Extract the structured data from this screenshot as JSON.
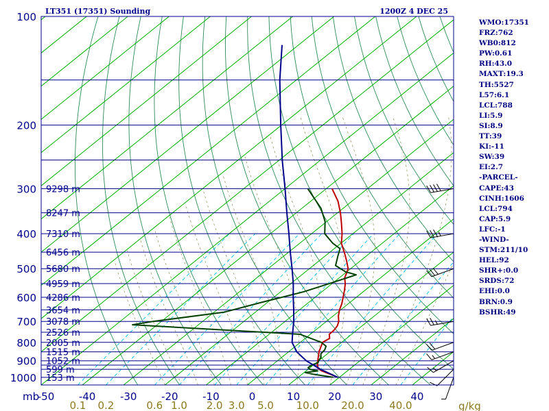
{
  "chart_data": {
    "type": "line",
    "title": "LT351 (17351) Sounding",
    "valid_time": "1200Z  4 DEC 25",
    "pressure_axis": {
      "unit": "mb",
      "ticks": [
        100,
        200,
        300,
        400,
        500,
        600,
        700,
        800,
        900,
        1000
      ],
      "range": [
        100,
        1050
      ]
    },
    "temperature_axis": {
      "unit": "C",
      "ticks": [
        -50,
        -40,
        -30,
        -20,
        -10,
        0,
        10,
        20,
        30,
        40
      ],
      "range": [
        -50,
        50
      ]
    },
    "mixing_ratio_axis": {
      "unit": "g/kg",
      "ticks": [
        "0.1",
        "0.2",
        "0.6",
        "1.0",
        "2.0",
        "3.0",
        "5.0",
        "10.0",
        "20.0",
        "40.0"
      ]
    },
    "isobars": [
      100,
      150,
      200,
      250,
      300,
      350,
      400,
      450,
      500,
      550,
      600,
      650,
      700,
      750,
      800,
      850,
      900,
      925,
      950,
      1000
    ],
    "height_labels": [
      {
        "p": 300,
        "label": "9298 m"
      },
      {
        "p": 350,
        "label": "8247 m"
      },
      {
        "p": 400,
        "label": "7310 m"
      },
      {
        "p": 450,
        "label": "6456 m"
      },
      {
        "p": 500,
        "label": "5680 m"
      },
      {
        "p": 550,
        "label": "4959 m"
      },
      {
        "p": 600,
        "label": "4286 m"
      },
      {
        "p": 650,
        "label": "3654 m"
      },
      {
        "p": 700,
        "label": "3078 m"
      },
      {
        "p": 750,
        "label": "2526 m"
      },
      {
        "p": 800,
        "label": "2005 m"
      },
      {
        "p": 850,
        "label": "1515 m"
      },
      {
        "p": 900,
        "label": "1052 m"
      },
      {
        "p": 950,
        "label": "599 m"
      },
      {
        "p": 1000,
        "label": "153 m"
      }
    ],
    "series": [
      {
        "name": "Temperature",
        "color": "#c00000",
        "points": [
          {
            "p": 1000,
            "t": 19.6
          },
          {
            "p": 990,
            "t": 18.2
          },
          {
            "p": 975,
            "t": 16.0
          },
          {
            "p": 960,
            "t": 13.8
          },
          {
            "p": 945,
            "t": 12.2
          },
          {
            "p": 925,
            "t": 11.0
          },
          {
            "p": 900,
            "t": 9.8
          },
          {
            "p": 875,
            "t": 8.6
          },
          {
            "p": 850,
            "t": 7.4
          },
          {
            "p": 825,
            "t": 6.4
          },
          {
            "p": 800,
            "t": 5.4
          },
          {
            "p": 780,
            "t": 5.9
          },
          {
            "p": 760,
            "t": 4.6
          },
          {
            "p": 740,
            "t": 4.5
          },
          {
            "p": 720,
            "t": 4.0
          },
          {
            "p": 700,
            "t": 3.0
          },
          {
            "p": 675,
            "t": 1.2
          },
          {
            "p": 650,
            "t": -0.3
          },
          {
            "p": 625,
            "t": -1.6
          },
          {
            "p": 600,
            "t": -3.2
          },
          {
            "p": 575,
            "t": -4.9
          },
          {
            "p": 550,
            "t": -6.8
          },
          {
            "p": 530,
            "t": -8.7
          },
          {
            "p": 515,
            "t": -9.6
          },
          {
            "p": 500,
            "t": -10.6
          },
          {
            "p": 475,
            "t": -13.4
          },
          {
            "p": 450,
            "t": -16.5
          },
          {
            "p": 425,
            "t": -19.9
          },
          {
            "p": 400,
            "t": -22.6
          },
          {
            "p": 375,
            "t": -25.8
          },
          {
            "p": 350,
            "t": -29.3
          },
          {
            "p": 325,
            "t": -33.4
          },
          {
            "p": 300,
            "t": -38.6
          }
        ]
      },
      {
        "name": "Dewpoint",
        "color": "#004000",
        "points": [
          {
            "p": 1000,
            "t": 18.5
          },
          {
            "p": 980,
            "t": 12.6
          },
          {
            "p": 970,
            "t": 10.3
          },
          {
            "p": 960,
            "t": 12.8
          },
          {
            "p": 950,
            "t": 10.4
          },
          {
            "p": 940,
            "t": 9.5
          },
          {
            "p": 925,
            "t": 9.6
          },
          {
            "p": 910,
            "t": 10.4
          },
          {
            "p": 900,
            "t": 10.0
          },
          {
            "p": 880,
            "t": 9.5
          },
          {
            "p": 860,
            "t": 8.4
          },
          {
            "p": 840,
            "t": 8.2
          },
          {
            "p": 820,
            "t": 7.4
          },
          {
            "p": 800,
            "t": 5.1
          },
          {
            "p": 760,
            "t": -2.5
          },
          {
            "p": 715,
            "t": -46.0
          },
          {
            "p": 700,
            "t": -42.0
          },
          {
            "p": 660,
            "t": -27.6
          },
          {
            "p": 620,
            "t": -21.5
          },
          {
            "p": 580,
            "t": -14.5
          },
          {
            "p": 550,
            "t": -10.7
          },
          {
            "p": 520,
            "t": -6.8
          },
          {
            "p": 510,
            "t": -10.3
          },
          {
            "p": 490,
            "t": -14.6
          },
          {
            "p": 460,
            "t": -17.0
          },
          {
            "p": 440,
            "t": -18.6
          },
          {
            "p": 425,
            "t": -22.0
          },
          {
            "p": 400,
            "t": -26.8
          },
          {
            "p": 370,
            "t": -30.4
          },
          {
            "p": 340,
            "t": -35.4
          },
          {
            "p": 300,
            "t": -44.5
          }
        ]
      },
      {
        "name": "Parcel path",
        "color": "#00008c",
        "points": [
          {
            "p": 1000,
            "t": 19.6
          },
          {
            "p": 950,
            "t": 13.0
          },
          {
            "p": 900,
            "t": 7.0
          },
          {
            "p": 850,
            "t": 2.0
          },
          {
            "p": 800,
            "t": -2.0
          },
          {
            "p": 750,
            "t": -4.9
          },
          {
            "p": 700,
            "t": -7.9
          },
          {
            "p": 650,
            "t": -11.4
          },
          {
            "p": 600,
            "t": -15.3
          },
          {
            "p": 550,
            "t": -19.4
          },
          {
            "p": 500,
            "t": -24.2
          },
          {
            "p": 450,
            "t": -29.6
          },
          {
            "p": 400,
            "t": -35.5
          },
          {
            "p": 350,
            "t": -42.3
          },
          {
            "p": 300,
            "t": -50.0
          },
          {
            "p": 250,
            "t": -59.3
          },
          {
            "p": 200,
            "t": -70.2
          },
          {
            "p": 150,
            "t": -84.0
          },
          {
            "p": 120,
            "t": -94.0
          }
        ]
      }
    ],
    "wind_barbs": [
      {
        "p": 1000,
        "dir": 200,
        "speed_kt": 5
      },
      {
        "p": 950,
        "dir": 225,
        "speed_kt": 10
      },
      {
        "p": 900,
        "dir": 240,
        "speed_kt": 15
      },
      {
        "p": 850,
        "dir": 250,
        "speed_kt": 15
      },
      {
        "p": 800,
        "dir": 250,
        "speed_kt": 20
      },
      {
        "p": 700,
        "dir": 260,
        "speed_kt": 25
      },
      {
        "p": 500,
        "dir": 250,
        "speed_kt": 30
      },
      {
        "p": 400,
        "dir": 260,
        "speed_kt": 35
      },
      {
        "p": 300,
        "dir": 260,
        "speed_kt": 40
      }
    ]
  },
  "stats": [
    "WMO:17351",
    "FRZ:762",
    "WB0:812",
    "PW:0.61",
    "RH:43.0",
    "MAXT:19.3",
    "TH:5527",
    "L57:6.1",
    "LCL:788",
    "LI:5.9",
    "SI:8.9",
    "TT:39",
    "KI:-11",
    "SW:39",
    "EI:2.7",
    "-PARCEL-",
    "CAPE:43",
    "CINH:1606",
    "LCL:794",
    "CAP:5.9",
    "LFC:-1",
    "-WIND-",
    "STM:211/10",
    "HEL:92",
    "SHR+:0.0",
    "SRDS:72",
    "EHI:0.0",
    "BRN:0.9",
    "BSHR:49"
  ],
  "colors": {
    "background": "#ffffff",
    "isobar": "#00008c",
    "isotherm": "#00b000",
    "dry_adiabat": "#2e8b57",
    "mixing_ratio": "#00bbee",
    "moist_adiabat": "#9a9a6a",
    "axis_text": "#00008c",
    "mixing_text": "#8a7a20",
    "title_text": "#00008c"
  }
}
